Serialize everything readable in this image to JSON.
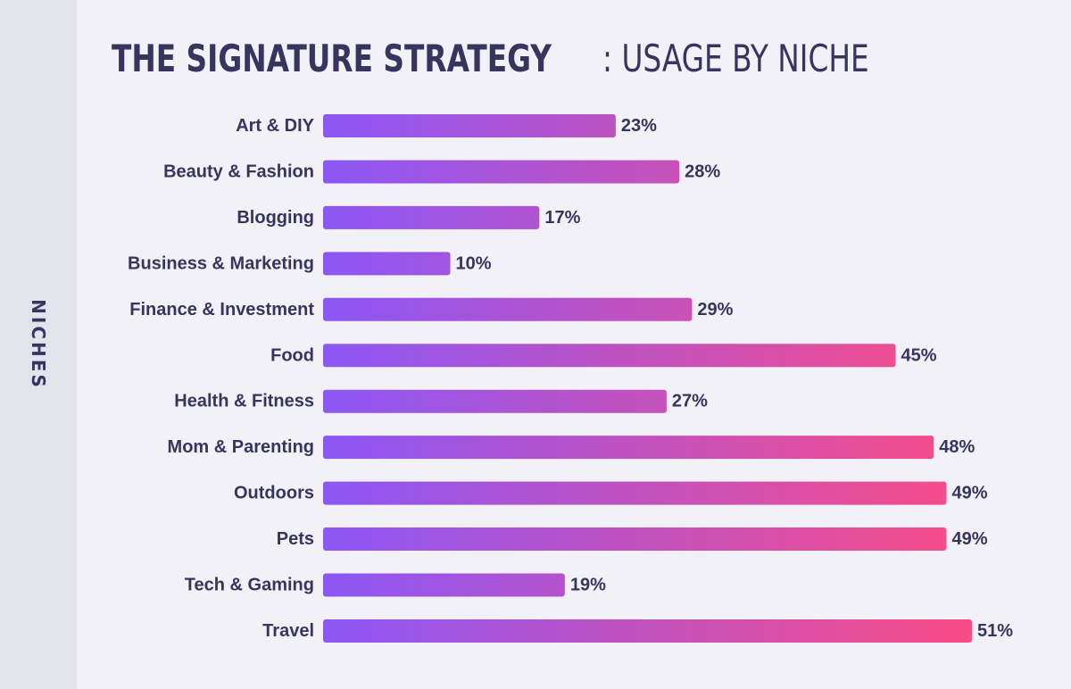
{
  "header": {
    "title_bold": "THE SIGNATURE STRATEGY",
    "title_rest": ": USAGE BY NICHE"
  },
  "colors": {
    "bar_start": "#8b57f5",
    "bar_end": "#fa4c86",
    "text": "#37345e"
  },
  "chart_data": {
    "type": "bar",
    "orientation": "horizontal",
    "title": "THE SIGNATURE STRATEGY: USAGE BY NICHE",
    "ylabel": "NICHES",
    "categories": [
      "Art & DIY",
      "Beauty & Fashion",
      "Blogging",
      "Business & Marketing",
      "Finance & Investment",
      "Food",
      "Health & Fitness",
      "Mom & Parenting",
      "Outdoors",
      "Pets",
      "Tech & Gaming",
      "Travel"
    ],
    "values": [
      23,
      28,
      17,
      10,
      29,
      45,
      27,
      48,
      49,
      49,
      19,
      51
    ],
    "value_labels": [
      "23%",
      "28%",
      "17%",
      "10%",
      "29%",
      "45%",
      "27%",
      "48%",
      "49%",
      "49%",
      "19%",
      "51%"
    ],
    "xlim": [
      0,
      51
    ],
    "grid": false,
    "legend": "none"
  }
}
